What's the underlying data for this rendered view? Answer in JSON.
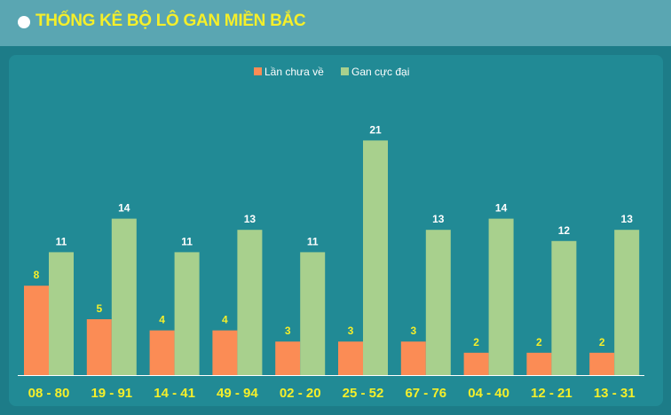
{
  "header": {
    "title": "THỐNG KÊ BỘ LÔ GAN MIỀN BẮC"
  },
  "colors": {
    "series1": "#fb8c55",
    "series2": "#a8d08d",
    "series1_label": "#f5ef2a",
    "series2_label": "#ffffff",
    "category_label": "#f5ef2a"
  },
  "chart_data": {
    "type": "bar",
    "title": "",
    "xlabel": "",
    "ylabel": "",
    "ylim": [
      0,
      22
    ],
    "grid": false,
    "legend": "top-center",
    "categories": [
      "08 - 80",
      "19 - 91",
      "14 - 41",
      "49 - 94",
      "02 - 20",
      "25 - 52",
      "67 - 76",
      "04 - 40",
      "12 - 21",
      "13 - 31"
    ],
    "series": [
      {
        "name": "Lần chưa về",
        "values": [
          8,
          5,
          4,
          4,
          3,
          3,
          3,
          2,
          2,
          2
        ]
      },
      {
        "name": "Gan cực đại",
        "values": [
          11,
          14,
          11,
          13,
          11,
          21,
          13,
          14,
          12,
          13
        ]
      }
    ]
  }
}
